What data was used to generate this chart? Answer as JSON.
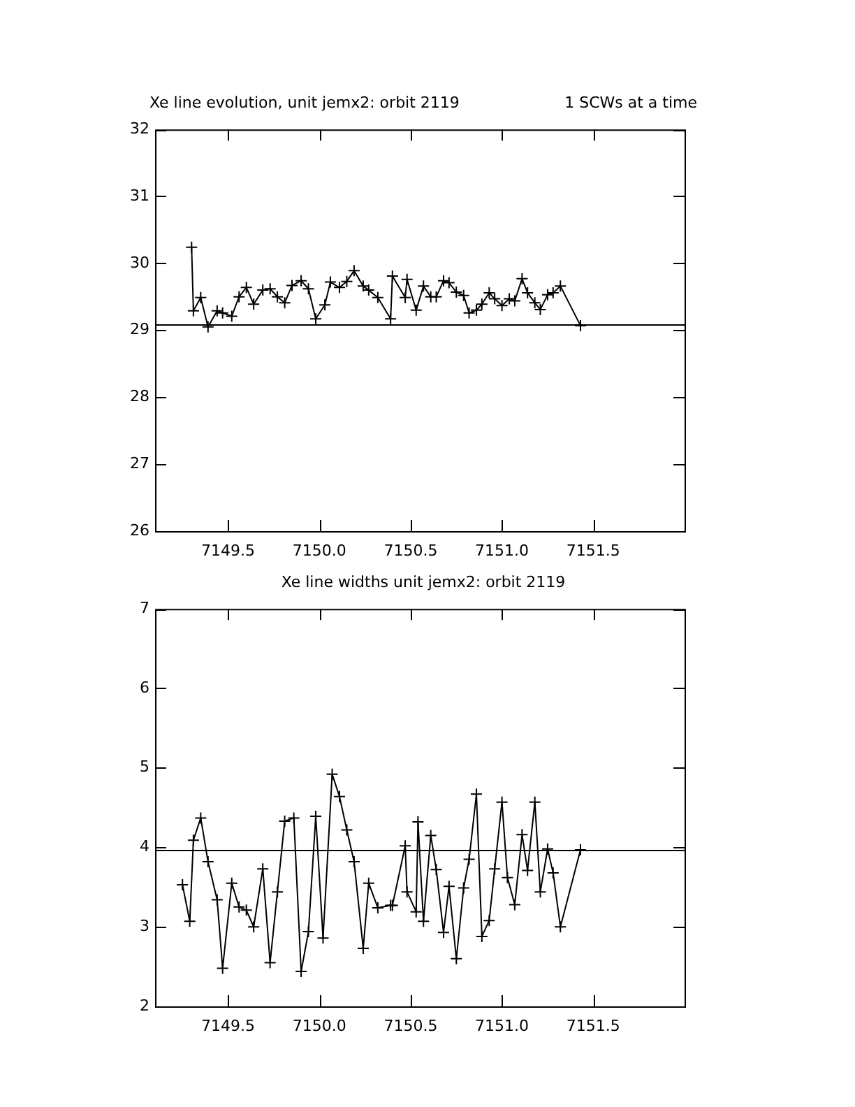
{
  "chart_data": [
    {
      "type": "line",
      "title": "Xe line evolution, unit jemx2: orbit 2119",
      "subtitle": "1 SCWs at a time",
      "color": "#000000",
      "marker": "cross",
      "x": [
        7149.3,
        7149.31,
        7149.35,
        7149.39,
        7149.44,
        7149.47,
        7149.52,
        7149.56,
        7149.6,
        7149.64,
        7149.69,
        7149.73,
        7149.77,
        7149.81,
        7149.85,
        7149.9,
        7149.94,
        7149.98,
        7150.03,
        7150.06,
        7150.11,
        7150.15,
        7150.19,
        7150.24,
        7150.27,
        7150.32,
        7150.39,
        7150.4,
        7150.47,
        7150.48,
        7150.53,
        7150.57,
        7150.61,
        7150.64,
        7150.68,
        7150.71,
        7150.75,
        7150.79,
        7150.82,
        7150.86,
        7150.89,
        7150.93,
        7150.96,
        7151.0,
        7151.04,
        7151.07,
        7151.11,
        7151.14,
        7151.18,
        7151.21,
        7151.25,
        7151.28,
        7151.32,
        7151.43
      ],
      "values": [
        30.24,
        29.29,
        29.49,
        29.05,
        29.29,
        29.26,
        29.21,
        29.5,
        29.64,
        29.39,
        29.6,
        29.62,
        29.5,
        29.41,
        29.67,
        29.74,
        29.62,
        29.17,
        29.38,
        29.72,
        29.64,
        29.73,
        29.89,
        29.66,
        29.6,
        29.49,
        29.17,
        29.81,
        29.49,
        29.76,
        29.3,
        29.66,
        29.5,
        29.5,
        29.74,
        29.71,
        29.57,
        29.52,
        29.26,
        29.3,
        29.39,
        29.56,
        29.47,
        29.37,
        29.47,
        29.44,
        29.77,
        29.56,
        29.41,
        29.31,
        29.53,
        29.56,
        29.66,
        29.07
      ],
      "xlim": [
        7149.1,
        7152.0
      ],
      "xticks": [
        {
          "value": 7149.5,
          "label": "7149.5"
        },
        {
          "value": 7150,
          "label": "7150.0"
        },
        {
          "value": 7150.5,
          "label": "7150.5"
        },
        {
          "value": 7151,
          "label": "7151.0"
        },
        {
          "value": 7151.5,
          "label": "7151.5"
        }
      ],
      "ylim": [
        26,
        32
      ],
      "yticks": [
        26,
        27,
        28,
        29,
        30,
        31,
        32
      ],
      "ref_lines": [
        {
          "axis": "y",
          "value": 29.08
        }
      ]
    },
    {
      "type": "line",
      "title": "Xe line widths unit jemx2: orbit 2119",
      "color": "#000000",
      "marker": "cross",
      "x": [
        7149.25,
        7149.29,
        7149.31,
        7149.35,
        7149.39,
        7149.44,
        7149.47,
        7149.52,
        7149.56,
        7149.6,
        7149.64,
        7149.69,
        7149.73,
        7149.77,
        7149.81,
        7149.86,
        7149.9,
        7149.94,
        7149.98,
        7150.02,
        7150.07,
        7150.11,
        7150.15,
        7150.19,
        7150.24,
        7150.27,
        7150.32,
        7150.39,
        7150.4,
        7150.47,
        7150.48,
        7150.53,
        7150.54,
        7150.57,
        7150.61,
        7150.64,
        7150.68,
        7150.71,
        7150.75,
        7150.79,
        7150.82,
        7150.86,
        7150.89,
        7150.93,
        7150.96,
        7151.0,
        7151.03,
        7151.07,
        7151.11,
        7151.14,
        7151.18,
        7151.21,
        7151.25,
        7151.28,
        7151.32,
        7151.43
      ],
      "values": [
        3.53,
        3.07,
        4.09,
        4.37,
        3.82,
        3.34,
        2.48,
        3.55,
        3.25,
        3.21,
        3.0,
        3.73,
        2.55,
        3.44,
        4.33,
        4.37,
        2.44,
        2.94,
        4.39,
        2.86,
        4.92,
        4.64,
        4.22,
        3.82,
        2.73,
        3.55,
        3.24,
        3.27,
        3.27,
        4.02,
        3.44,
        3.19,
        4.32,
        3.07,
        4.15,
        3.72,
        2.93,
        3.51,
        2.6,
        3.49,
        3.85,
        4.67,
        2.88,
        3.08,
        3.73,
        4.57,
        3.62,
        3.28,
        4.16,
        3.71,
        4.57,
        3.44,
        3.98,
        3.68,
        3.0,
        3.97
      ],
      "xlim": [
        7149.1,
        7152.0
      ],
      "xticks": [
        {
          "value": 7149.5,
          "label": "7149.5"
        },
        {
          "value": 7150,
          "label": "7150.0"
        },
        {
          "value": 7150.5,
          "label": "7150.5"
        },
        {
          "value": 7151,
          "label": "7151.0"
        },
        {
          "value": 7151.5,
          "label": "7151.5"
        }
      ],
      "ylim": [
        2,
        7
      ],
      "yticks": [
        2,
        3,
        4,
        5,
        6,
        7
      ],
      "ref_lines": [
        {
          "axis": "y",
          "value": 3.97
        }
      ]
    }
  ]
}
